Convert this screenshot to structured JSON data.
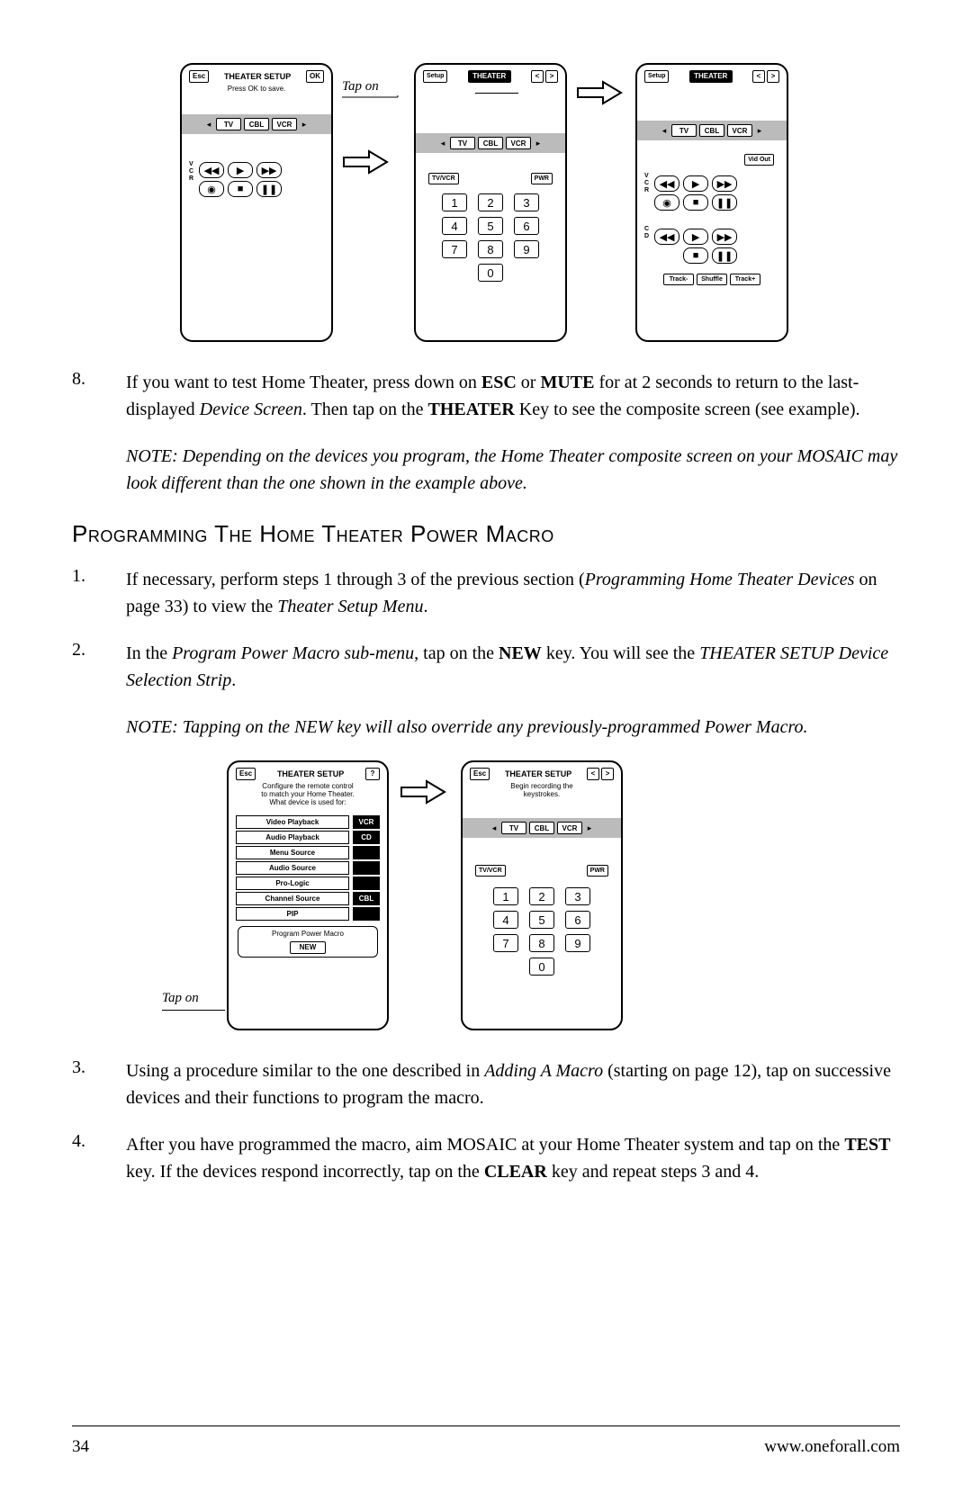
{
  "topRemotes": {
    "r1": {
      "esc": "Esc",
      "title": "THEATER SETUP",
      "ok": "OK",
      "sub": "Press OK to save.",
      "devices": [
        "TV",
        "CBL",
        "VCR"
      ],
      "sideTop": "V\nC\nR"
    },
    "tapOn": "Tap on",
    "r2": {
      "setup": "Setup",
      "theater": "THEATER",
      "devices": [
        "TV",
        "CBL",
        "VCR"
      ],
      "tvvcr": "TV/VCR",
      "pwr": "PWR",
      "nums": [
        "1",
        "2",
        "3",
        "4",
        "5",
        "6",
        "7",
        "8",
        "9",
        "0"
      ]
    },
    "r3": {
      "setup": "Setup",
      "theater": "THEATER",
      "devices": [
        "TV",
        "CBL",
        "VCR"
      ],
      "vidout": "Vid Out",
      "sideV": "V\nC\nR",
      "sideC": "C\nD",
      "bottom": [
        "Track-",
        "Shuffle",
        "Track+"
      ]
    }
  },
  "step8": {
    "num": "8.",
    "text_parts": [
      "If you want to test Home Theater, press down on ",
      "ESC",
      " or ",
      "MUTE",
      " for at 2 seconds to return to the last-displayed ",
      "Device Screen",
      ". Then tap on the ",
      "THEATER",
      " Key to see the composite screen (see example)."
    ]
  },
  "note1": "NOTE: Depending on the devices you program, the Home Theater composite screen on your MOSAIC may look different than the one shown in the example above.",
  "heading": "Programming The Home Theater Power Macro",
  "step1": {
    "num": "1.",
    "parts": [
      "If necessary, perform steps 1 through 3 of the previous section (",
      "Programming Home Theater Devices",
      " on page 33) to view the ",
      "Theater Setup Menu",
      "."
    ]
  },
  "step2": {
    "num": "2.",
    "parts": [
      "In the ",
      "Program Power Macro sub-menu",
      ", tap on the ",
      "NEW",
      " key. You will see the  ",
      "THEATER SETUP Device Selection Strip",
      "."
    ]
  },
  "note2": "NOTE: Tapping on the NEW key will also override any previously-programmed Power Macro.",
  "bottomRemotes": {
    "tapOn": "Tap on",
    "left": {
      "esc": "Esc",
      "title": "THEATER SETUP",
      "q": "?",
      "sub1": "Configure the remote control",
      "sub2": "to match your Home Theater.",
      "sub3": "What device is used for:",
      "rows": [
        {
          "label": "Video Playback",
          "val": "VCR"
        },
        {
          "label": "Audio Playback",
          "val": "CD"
        },
        {
          "label": "Menu Source",
          "val": ""
        },
        {
          "label": "Audio Source",
          "val": ""
        },
        {
          "label": "Pro-Logic",
          "val": ""
        },
        {
          "label": "Channel Source",
          "val": "CBL"
        },
        {
          "label": "PIP",
          "val": ""
        }
      ],
      "ppm": "Program Power Macro",
      "new": "NEW"
    },
    "right": {
      "esc": "Esc",
      "title": "THEATER SETUP",
      "sub1": "Begin recording the",
      "sub2": "keystrokes.",
      "devices": [
        "TV",
        "CBL",
        "VCR"
      ],
      "tvvcr": "TV/VCR",
      "pwr": "PWR",
      "nums": [
        "1",
        "2",
        "3",
        "4",
        "5",
        "6",
        "7",
        "8",
        "9",
        "0"
      ]
    }
  },
  "step3": {
    "num": "3.",
    "parts": [
      "Using a procedure similar to the one described in ",
      "Adding A Macro",
      " (starting on page 12), tap on successive devices and their functions to program the macro."
    ]
  },
  "step4": {
    "num": "4.",
    "parts": [
      "After you have programmed the macro, aim MOSAIC at your Home Theater system and tap on the ",
      "TEST",
      " key. If the devices respond incorrectly, tap on the ",
      "CLEAR",
      " key and repeat steps 3 and 4."
    ]
  },
  "footer": {
    "page": "34",
    "url": "www.oneforall.com"
  }
}
